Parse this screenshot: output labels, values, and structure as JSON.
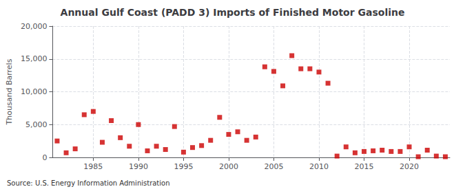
{
  "chart_data": {
    "type": "scatter",
    "title": "Annual Gulf Coast (PADD 3) Imports of Finished Motor Gasoline",
    "ylabel": "Thousand Barrels",
    "annotations": [
      "Source: U.S. Energy Information Administration"
    ],
    "x": [
      1981,
      1982,
      1983,
      1984,
      1985,
      1986,
      1987,
      1988,
      1989,
      1990,
      1991,
      1992,
      1993,
      1994,
      1995,
      1996,
      1997,
      1998,
      1999,
      2000,
      2001,
      2002,
      2003,
      2004,
      2005,
      2006,
      2007,
      2008,
      2009,
      2010,
      2011,
      2012,
      2013,
      2014,
      2015,
      2016,
      2017,
      2018,
      2019,
      2020,
      2021,
      2022,
      2023,
      2024
    ],
    "values": [
      2500,
      700,
      1300,
      6500,
      7000,
      2300,
      5600,
      3000,
      1700,
      5000,
      1000,
      1700,
      1200,
      4700,
      800,
      1500,
      1800,
      2600,
      6100,
      3500,
      3900,
      2600,
      3100,
      13800,
      13100,
      10900,
      15500,
      13500,
      13500,
      13000,
      11300,
      200,
      1600,
      700,
      900,
      1000,
      1100,
      900,
      900,
      1600,
      100,
      1100,
      200,
      100
    ],
    "color": "#cc0000",
    "marker": "square",
    "xlim": [
      1980.5,
      2024.5
    ],
    "xticks": [
      1985,
      1990,
      1995,
      2000,
      2005,
      2010,
      2015,
      2020
    ],
    "ylim": [
      0,
      20000
    ],
    "yticks": [
      0,
      {
        "value": 5000,
        "label": "5,000"
      },
      {
        "value": 10000,
        "label": "10,000"
      },
      {
        "value": 15000,
        "label": "15,000"
      },
      {
        "value": 20000,
        "label": "20,000"
      }
    ],
    "grid": true
  }
}
